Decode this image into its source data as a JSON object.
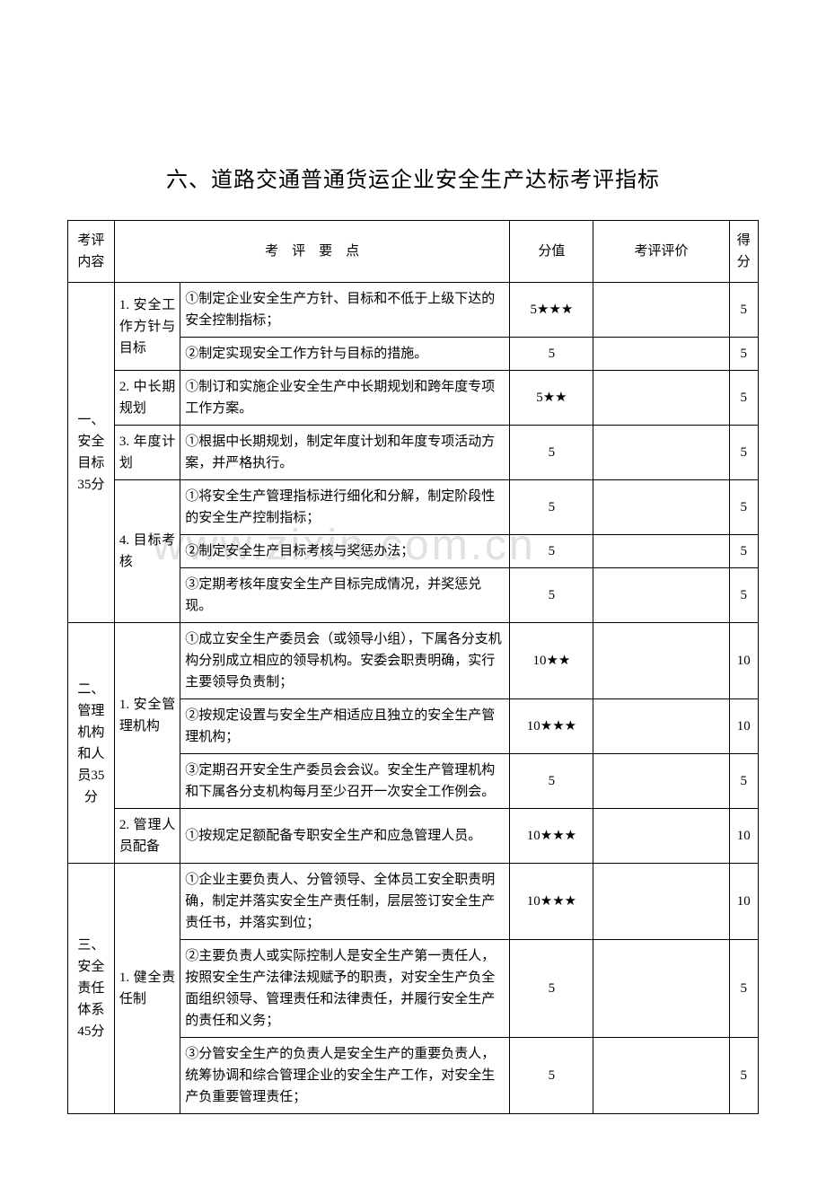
{
  "title": "六、道路交通普通货运企业安全生产达标考评指标",
  "watermark": "www.zixin.com.cn",
  "headers": {
    "category": "考评内容",
    "points": "考　评　要　点",
    "score": "分值",
    "evaluation": "考评评价",
    "got": "得分"
  },
  "sections": [
    {
      "category": "一、安全目标35分",
      "subs": [
        {
          "name": "1. 安全工作方针与目标",
          "items": [
            {
              "text": "①制定企业安全生产方针、目标和不低于上级下达的安全控制指标；",
              "score": "5★★★",
              "got": "5"
            },
            {
              "text": "②制定实现安全工作方针与目标的措施。",
              "score": "5",
              "got": "5"
            }
          ]
        },
        {
          "name": "2. 中长期规划",
          "items": [
            {
              "text": "①制订和实施企业安全生产中长期规划和跨年度专项工作方案。",
              "score": "5★★",
              "got": "5"
            }
          ]
        },
        {
          "name": "3. 年度计划",
          "items": [
            {
              "text": "①根据中长期规划，制定年度计划和年度专项活动方案，并严格执行。",
              "score": "5",
              "got": "5"
            }
          ]
        },
        {
          "name": "4. 目标考核",
          "items": [
            {
              "text": "①将安全生产管理指标进行细化和分解，制定阶段性的安全生产控制指标；",
              "score": "5",
              "got": "5"
            },
            {
              "text": "②制定安全生产目标考核与奖惩办法；",
              "score": "5",
              "got": "5"
            },
            {
              "text": "③定期考核年度安全生产目标完成情况，并奖惩兑现。",
              "score": "5",
              "got": "5"
            }
          ]
        }
      ]
    },
    {
      "category": "二、管理机构和人员35分",
      "subs": [
        {
          "name": "1. 安全管理机构",
          "items": [
            {
              "text": "①成立安全生产委员会（或领导小组），下属各分支机构分别成立相应的领导机构。安委会职责明确，实行主要领导负责制；",
              "score": "10★★",
              "got": "10"
            },
            {
              "text": "②按规定设置与安全生产相适应且独立的安全生产管理机构；",
              "score": "10★★★",
              "got": "10"
            },
            {
              "text": "③定期召开安全生产委员会会议。安全生产管理机构和下属各分支机构每月至少召开一次安全工作例会。",
              "score": "5",
              "got": "5"
            }
          ]
        },
        {
          "name": "2. 管理人员配备",
          "items": [
            {
              "text": "①按规定足额配备专职安全生产和应急管理人员。",
              "score": "10★★★",
              "got": "10"
            }
          ]
        }
      ]
    },
    {
      "category": "三、安全责任体系45分",
      "subs": [
        {
          "name": "1. 健全责任制",
          "items": [
            {
              "text": "①企业主要负责人、分管领导、全体员工安全职责明确，制定并落实安全生产责任制，层层签订安全生产责任书，并落实到位；",
              "score": "10★★★",
              "got": "10"
            },
            {
              "text": "②主要负责人或实际控制人是安全生产第一责任人，按照安全生产法律法规赋予的职责，对安全生产负全面组织领导、管理责任和法律责任，并履行安全生产的责任和义务；",
              "score": "5",
              "got": "5"
            },
            {
              "text": "③分管安全生产的负责人是安全生产的重要负责人，统筹协调和综合管理企业的安全生产工作，对安全生产负重要管理责任；",
              "score": "5",
              "got": "5"
            }
          ]
        }
      ]
    }
  ]
}
